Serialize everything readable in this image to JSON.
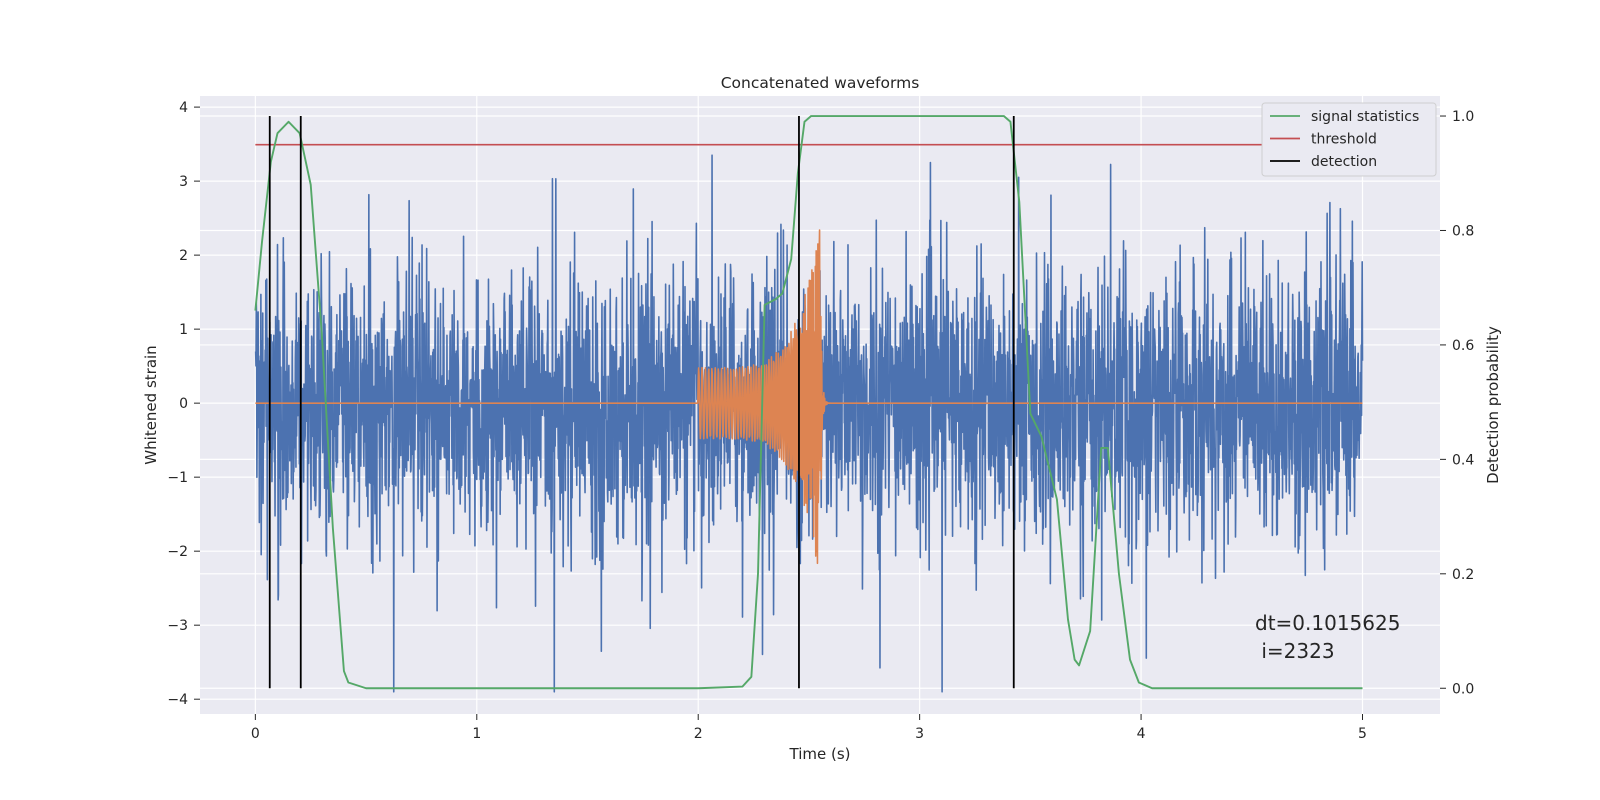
{
  "chart_data": {
    "type": "line",
    "title": "Concatenated waveforms",
    "xlabel": "Time (s)",
    "ylabel": "Whitened strain",
    "y2label": "Detection probability",
    "xlim": [
      -0.25,
      5.35
    ],
    "ylim": [
      -4.2,
      4.15
    ],
    "y2lim": [
      -0.045,
      1.035
    ],
    "xticks": [
      0,
      1,
      2,
      3,
      4,
      5
    ],
    "yticks": [
      -4,
      -3,
      -2,
      -1,
      0,
      1,
      2,
      3,
      4
    ],
    "y2ticks": [
      0.0,
      0.2,
      0.4,
      0.6,
      0.8,
      1.0
    ],
    "xtick_labels": [
      "0",
      "1",
      "2",
      "3",
      "4",
      "5"
    ],
    "ytick_labels": [
      "−4",
      "−3",
      "−2",
      "−1",
      "0",
      "1",
      "2",
      "3",
      "4"
    ],
    "y2tick_labels": [
      "0.0",
      "0.2",
      "0.4",
      "0.6",
      "0.8",
      "1.0"
    ],
    "grid": true,
    "legend_placement": "top-right",
    "colors": {
      "strain": "#4c72b0",
      "waveform": "#dd8452",
      "signal_statistics": "#55a868",
      "threshold": "#c44e52",
      "detection": "#000000",
      "background": "#eaeaf2"
    },
    "legend": [
      {
        "key": "signal_statistics",
        "label": "signal statistics"
      },
      {
        "key": "threshold",
        "label": "threshold"
      },
      {
        "key": "detection",
        "label": "detection"
      }
    ],
    "strain_noise": {
      "t_start": 0,
      "t_end": 5,
      "amplitude_range": [
        -3.9,
        3.35
      ]
    },
    "injected_waveform": {
      "t_start": 2.0,
      "t_merger": 2.55,
      "t_end": 3.0,
      "peak_amplitude": 2.7
    },
    "signal_statistics": {
      "t": [
        0,
        0.03,
        0.07,
        0.1,
        0.15,
        0.2,
        0.25,
        0.3,
        0.35,
        0.4,
        0.42,
        0.5,
        1.0,
        2.0,
        2.2,
        2.24,
        2.27,
        2.3,
        2.35,
        2.38,
        2.42,
        2.45,
        2.48,
        2.51,
        2.53,
        2.58,
        3.0,
        3.38,
        3.41,
        3.45,
        3.5,
        3.55,
        3.62,
        3.67,
        3.7,
        3.72,
        3.77,
        3.82,
        3.85,
        3.9,
        3.95,
        3.99,
        4.05,
        4.5,
        5.0
      ],
      "values": [
        0.66,
        0.78,
        0.92,
        0.97,
        0.99,
        0.97,
        0.88,
        0.62,
        0.28,
        0.03,
        0.01,
        0.0,
        0.0,
        0.0,
        0.003,
        0.02,
        0.2,
        0.67,
        0.68,
        0.69,
        0.75,
        0.9,
        0.99,
        1.0,
        1.0,
        1.0,
        1.0,
        1.0,
        0.99,
        0.85,
        0.48,
        0.44,
        0.33,
        0.12,
        0.05,
        0.04,
        0.1,
        0.42,
        0.42,
        0.2,
        0.05,
        0.01,
        0.0,
        0.0,
        0.0
      ]
    },
    "threshold": {
      "value": 0.95,
      "t_range": [
        0,
        5
      ]
    },
    "detections": [
      0.065,
      0.205,
      2.455,
      3.425
    ],
    "detection_range": [
      0.0,
      1.0
    ],
    "annotation": {
      "line1": "dt=0.1015625",
      "line2": " i=2323"
    }
  }
}
